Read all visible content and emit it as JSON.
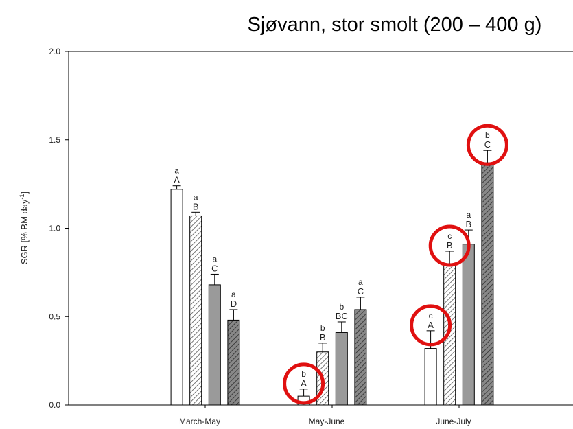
{
  "chart_data": {
    "type": "bar",
    "title": "Sjøvann, stor smolt (200 – 400 g)",
    "ylabel": "SGR [% BM day",
    "ylabel_sup": "-1",
    "ylabel_end": "]",
    "categories": [
      "March-May",
      "May-June",
      "June-July"
    ],
    "series": [
      {
        "color": "#ffffff",
        "hatch": false,
        "values": [
          1.22,
          0.05,
          0.32
        ],
        "errors": [
          0.02,
          0.04,
          0.1
        ],
        "letters_lower": [
          "a",
          "b",
          "c"
        ],
        "letters_upper": [
          "A",
          "A",
          "A"
        ]
      },
      {
        "color": "#ffffff",
        "hatch": true,
        "values": [
          1.07,
          0.3,
          0.79
        ],
        "errors": [
          0.02,
          0.05,
          0.08
        ],
        "letters_lower": [
          "a",
          "b",
          "c"
        ],
        "letters_upper": [
          "B",
          "B",
          "B"
        ]
      },
      {
        "color": "#9a9a9a",
        "hatch": false,
        "values": [
          0.68,
          0.41,
          0.91
        ],
        "errors": [
          0.06,
          0.06,
          0.08
        ],
        "letters_lower": [
          "a",
          "b",
          "a"
        ],
        "letters_upper": [
          "C",
          "BC",
          "B"
        ]
      },
      {
        "color": "#6e6e6e",
        "hatch": true,
        "values": [
          0.48,
          0.54,
          1.37
        ],
        "errors": [
          0.06,
          0.07,
          0.07
        ],
        "letters_lower": [
          "a",
          "a",
          "b"
        ],
        "letters_upper": [
          "D",
          "C",
          "C"
        ]
      }
    ],
    "ylim": [
      0,
      2.0
    ],
    "yticks": [
      {
        "value": 0,
        "label": "0.0"
      },
      0.5,
      {
        "value": 1.0,
        "label": "1.0"
      },
      1.5,
      {
        "value": 2.0,
        "label": "2.0"
      }
    ]
  }
}
